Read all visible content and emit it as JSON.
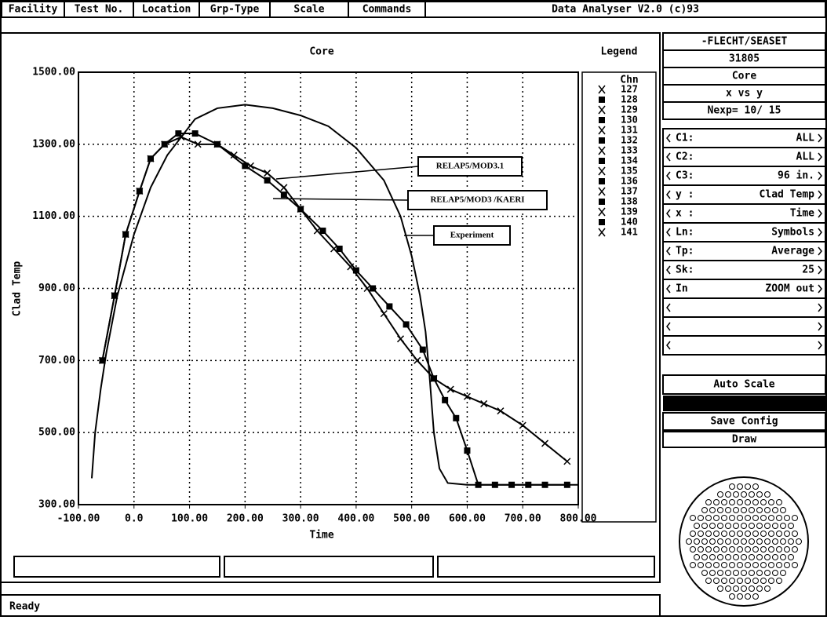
{
  "menu": [
    "Facility",
    "Test No.",
    "Location",
    "Grp-Type",
    "Scale",
    "Commands",
    "Data Analyser V2.0 (c)93"
  ],
  "chart_data": {
    "type": "line",
    "title": "Core",
    "xlabel": "Time",
    "ylabel": "Clad Temp",
    "legend_title": "Legend",
    "legend_header": "Chn",
    "channels": [
      "127",
      "128",
      "129",
      "130",
      "131",
      "132",
      "133",
      "134",
      "135",
      "136",
      "137",
      "138",
      "139",
      "140",
      "141"
    ],
    "xlim": [
      -100,
      800
    ],
    "ylim": [
      300,
      1500
    ],
    "grid": true,
    "xticks": [
      {
        "value": -100,
        "label": "-100.00"
      },
      {
        "value": 0,
        "label": "0.0"
      },
      {
        "value": 100,
        "label": "100.00"
      },
      {
        "value": 200,
        "label": "200.00"
      },
      {
        "value": 300,
        "label": "300.00"
      },
      {
        "value": 400,
        "label": "400.00"
      },
      {
        "value": 500,
        "label": "500.00"
      },
      {
        "value": 600,
        "label": "600.00"
      },
      {
        "value": 700,
        "label": "700.00"
      },
      {
        "value": 800,
        "label": "800.00"
      }
    ],
    "yticks": [
      {
        "value": 300,
        "label": "300.00"
      },
      {
        "value": 500,
        "label": "500.00"
      },
      {
        "value": 700,
        "label": "700.00"
      },
      {
        "value": 900,
        "label": "900.00"
      },
      {
        "value": 1100,
        "label": "1100.00"
      },
      {
        "value": 1300,
        "label": "1300.00"
      },
      {
        "value": 1500,
        "label": "1500.00"
      }
    ],
    "series": [
      {
        "name": "RELAP5/MOD3.1",
        "color": "#000000",
        "marker": "x",
        "x": [
          -57,
          -35,
          -15,
          10,
          30,
          55,
          85,
          115,
          150,
          180,
          210,
          240,
          270,
          300,
          330,
          360,
          390,
          420,
          450,
          480,
          510,
          540,
          570,
          600,
          630,
          660,
          700,
          740,
          780
        ],
        "values": [
          700,
          880,
          1050,
          1170,
          1260,
          1300,
          1320,
          1300,
          1300,
          1270,
          1240,
          1220,
          1180,
          1120,
          1060,
          1010,
          960,
          900,
          830,
          760,
          700,
          650,
          620,
          600,
          580,
          560,
          520,
          470,
          420
        ]
      },
      {
        "name": "RELAP5/MOD3 /KAERI",
        "color": "#000000",
        "marker": "square",
        "x": [
          -57,
          -35,
          -15,
          10,
          30,
          55,
          80,
          110,
          150,
          200,
          240,
          270,
          300,
          340,
          370,
          400,
          430,
          460,
          490,
          520,
          540,
          560,
          580,
          600,
          620,
          650,
          680,
          710,
          740,
          780
        ],
        "values": [
          700,
          880,
          1050,
          1170,
          1260,
          1300,
          1330,
          1330,
          1300,
          1240,
          1200,
          1160,
          1120,
          1060,
          1010,
          950,
          900,
          850,
          800,
          730,
          650,
          590,
          540,
          450,
          355,
          355,
          355,
          355,
          355,
          355
        ]
      },
      {
        "name": "Experiment",
        "color": "#000000",
        "marker": "none",
        "x": [
          -76,
          -70,
          -60,
          -50,
          -30,
          0,
          30,
          60,
          90,
          110,
          150,
          200,
          250,
          300,
          350,
          400,
          450,
          480,
          500,
          515,
          525,
          532,
          540,
          550,
          565,
          600,
          700,
          800
        ],
        "values": [
          373,
          500,
          620,
          720,
          880,
          1050,
          1180,
          1270,
          1330,
          1370,
          1400,
          1410,
          1400,
          1380,
          1350,
          1290,
          1200,
          1100,
          990,
          880,
          780,
          660,
          500,
          400,
          360,
          355,
          355,
          355
        ]
      }
    ]
  },
  "panel": {
    "title": "-FLECHT/SEASET",
    "test": "31805",
    "location": "Core",
    "plot": "x vs y",
    "nexp": "Nexp= 10/ 15",
    "rows": [
      [
        "C1:",
        "ALL"
      ],
      [
        "C2:",
        "ALL"
      ],
      [
        "C3:",
        "96 in."
      ],
      [
        "y :",
        "Clad Temp"
      ],
      [
        "x :",
        "Time"
      ],
      [
        "Ln:",
        "Symbols"
      ],
      [
        "Tp:",
        "Average"
      ],
      [
        "Sk:",
        "25"
      ],
      [
        "In",
        "ZOOM out"
      ]
    ],
    "buttons": [
      "Auto Scale",
      "Save Config",
      "Draw"
    ]
  },
  "status": "Ready"
}
